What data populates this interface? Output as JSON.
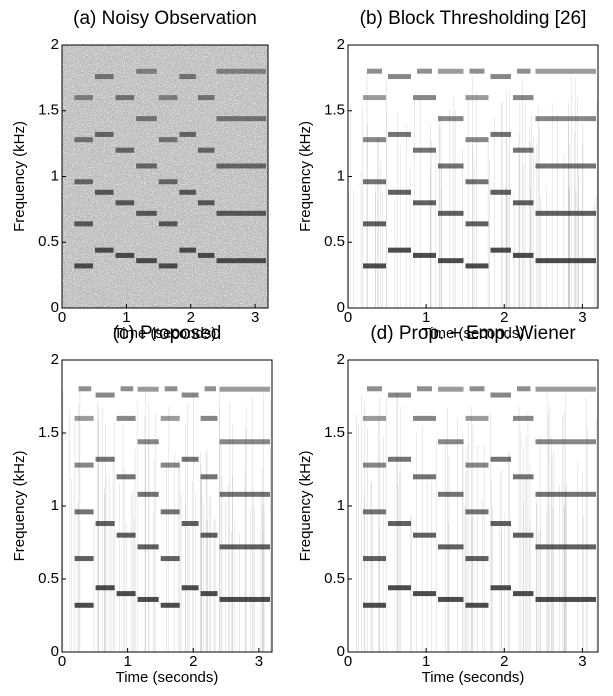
{
  "chart_data": [
    {
      "type": "spectrogram",
      "title": "(a) Noisy Observation",
      "xlabel": "Time (seconds)",
      "ylabel": "Frequency (kHz)",
      "xlim": [
        0,
        3.2
      ],
      "ylim": [
        0,
        2
      ],
      "xticks": [
        0,
        1,
        2,
        3
      ],
      "yticks": [
        0,
        0.5,
        1,
        1.5,
        2
      ]
    },
    {
      "type": "spectrogram",
      "title": "(b) Block Thresholding [26]",
      "xlabel": "Time (seconds)",
      "ylabel": "Frequency (kHz)",
      "xlim": [
        0,
        3.2
      ],
      "ylim": [
        0,
        2
      ],
      "xticks": [
        0,
        1,
        2,
        3
      ],
      "yticks": [
        0,
        0.5,
        1,
        1.5,
        2
      ]
    },
    {
      "type": "spectrogram",
      "title": "(c) Proposed",
      "xlabel": "Time (seconds)",
      "ylabel": "Frequency (kHz)",
      "xlim": [
        0,
        3.2
      ],
      "ylim": [
        0,
        2
      ],
      "xticks": [
        0,
        1,
        2,
        3
      ],
      "yticks": [
        0,
        0.5,
        1,
        1.5,
        2
      ]
    },
    {
      "type": "spectrogram",
      "title": "(d) Prop. + Emp. Wiener",
      "xlabel": "Time (seconds)",
      "ylabel": "Frequency (kHz)",
      "xlim": [
        0,
        3.2
      ],
      "ylim": [
        0,
        2
      ],
      "xticks": [
        0,
        1,
        2,
        3
      ],
      "yticks": [
        0,
        0.5,
        1,
        1.5,
        2
      ]
    }
  ]
}
